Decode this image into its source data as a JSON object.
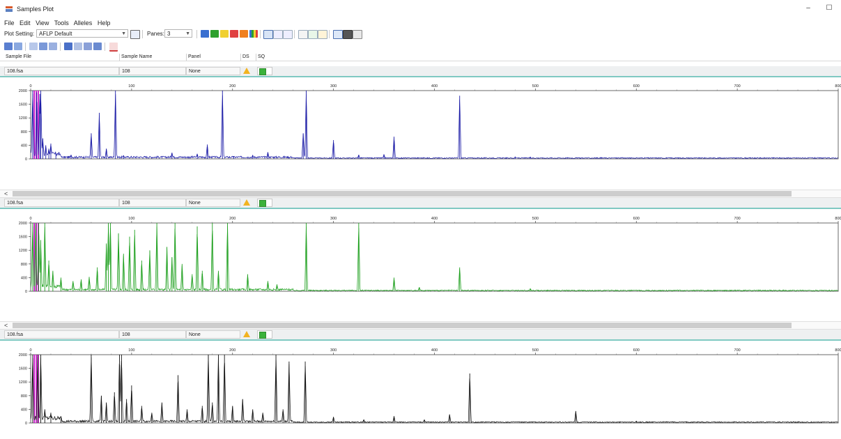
{
  "window": {
    "title": "Samples Plot",
    "minimize_glyph": "–",
    "maximize_glyph": "☐"
  },
  "menu": [
    "File",
    "Edit",
    "View",
    "Tools",
    "Alleles",
    "Help"
  ],
  "toolbar": {
    "plot_setting_label": "Plot Setting:",
    "plot_setting_value": "AFLP Default",
    "panes_label": "Panes:",
    "panes_value": "3"
  },
  "table_header": {
    "sample_file": "Sample File",
    "sample_name": "Sample Name",
    "panel": "Panel",
    "ds": "DS",
    "sq": "SQ"
  },
  "samples": [
    {
      "file": "108.fsa",
      "name": "108",
      "panel": "None"
    },
    {
      "file": "108.fsa",
      "name": "108",
      "panel": "None"
    },
    {
      "file": "108.fsa",
      "name": "108",
      "panel": "None"
    }
  ],
  "scroll_left_glyph": "<",
  "colors": {
    "blue_trace": "#1a1aa6",
    "green_trace": "#1fa01f",
    "black_trace": "#111111",
    "highlight_magenta": "#c800c8",
    "row_accent": "#7fc9c2"
  },
  "chart_data": [
    {
      "type": "line",
      "series": [
        {
          "color": "#1a1aa6",
          "peaks": [
            [
              2,
              2000
            ],
            [
              6,
              1950
            ],
            [
              9,
              1900
            ],
            [
              10,
              2000
            ],
            [
              12,
              600
            ],
            [
              15,
              400
            ],
            [
              18,
              300
            ],
            [
              20,
              450
            ],
            [
              25,
              180
            ],
            [
              40,
              120
            ],
            [
              60,
              750
            ],
            [
              68,
              1350
            ],
            [
              75,
              300
            ],
            [
              84,
              2000
            ],
            [
              92,
              100
            ],
            [
              140,
              180
            ],
            [
              165,
              150
            ],
            [
              175,
              420
            ],
            [
              190,
              2000
            ],
            [
              201,
              80
            ],
            [
              220,
              110
            ],
            [
              235,
              200
            ],
            [
              270,
              750
            ],
            [
              273,
              2000
            ],
            [
              300,
              550
            ],
            [
              325,
              120
            ],
            [
              350,
              130
            ],
            [
              360,
              650
            ],
            [
              425,
              1850
            ],
            [
              480,
              60
            ],
            [
              495,
              60
            ]
          ]
        }
      ],
      "x_ticks": [
        "0",
        "100",
        "200",
        "300",
        "400",
        "500",
        "600",
        "700",
        "800"
      ],
      "y_ticks": [
        "2000",
        "1600",
        "1200",
        "800",
        "400",
        "0"
      ],
      "xlim": [
        0,
        800
      ],
      "ylim": [
        0,
        2000
      ]
    },
    {
      "type": "line",
      "series": [
        {
          "color": "#1fa01f",
          "peaks": [
            [
              2,
              2000
            ],
            [
              5,
              2000
            ],
            [
              8,
              2000
            ],
            [
              10,
              1500
            ],
            [
              14,
              2000
            ],
            [
              18,
              900
            ],
            [
              22,
              600
            ],
            [
              30,
              400
            ],
            [
              42,
              300
            ],
            [
              50,
              350
            ],
            [
              58,
              420
            ],
            [
              66,
              700
            ],
            [
              75,
              1400
            ],
            [
              77,
              2000
            ],
            [
              79,
              2000
            ],
            [
              87,
              1700
            ],
            [
              92,
              1100
            ],
            [
              98,
              1600
            ],
            [
              103,
              1800
            ],
            [
              110,
              900
            ],
            [
              118,
              1200
            ],
            [
              125,
              2000
            ],
            [
              135,
              1300
            ],
            [
              140,
              1000
            ],
            [
              143,
              2000
            ],
            [
              150,
              800
            ],
            [
              160,
              500
            ],
            [
              165,
              1900
            ],
            [
              170,
              600
            ],
            [
              180,
              2000
            ],
            [
              186,
              600
            ],
            [
              195,
              2000
            ],
            [
              215,
              500
            ],
            [
              235,
              300
            ],
            [
              244,
              200
            ],
            [
              273,
              2000
            ],
            [
              325,
              2000
            ],
            [
              360,
              400
            ],
            [
              385,
              120
            ],
            [
              425,
              700
            ],
            [
              495,
              80
            ]
          ]
        }
      ],
      "x_ticks": [
        "0",
        "100",
        "200",
        "300",
        "400",
        "500",
        "600",
        "700",
        "800"
      ],
      "y_ticks": [
        "2000",
        "1600",
        "1200",
        "800",
        "400",
        "0"
      ],
      "xlim": [
        0,
        800
      ],
      "ylim": [
        0,
        2000
      ]
    },
    {
      "type": "line",
      "series": [
        {
          "color": "#111111",
          "peaks": [
            [
              2,
              2000
            ],
            [
              7,
              2000
            ],
            [
              10,
              2000
            ],
            [
              14,
              400
            ],
            [
              20,
              300
            ],
            [
              30,
              200
            ],
            [
              60,
              2000
            ],
            [
              70,
              800
            ],
            [
              75,
              600
            ],
            [
              83,
              900
            ],
            [
              88,
              2000
            ],
            [
              90,
              2000
            ],
            [
              95,
              700
            ],
            [
              100,
              1100
            ],
            [
              110,
              500
            ],
            [
              120,
              300
            ],
            [
              130,
              600
            ],
            [
              146,
              1400
            ],
            [
              155,
              400
            ],
            [
              170,
              500
            ],
            [
              176,
              2000
            ],
            [
              180,
              600
            ],
            [
              186,
              2000
            ],
            [
              192,
              2000
            ],
            [
              200,
              500
            ],
            [
              210,
              700
            ],
            [
              220,
              400
            ],
            [
              230,
              300
            ],
            [
              243,
              2000
            ],
            [
              250,
              400
            ],
            [
              256,
              1800
            ],
            [
              272,
              1800
            ],
            [
              300,
              180
            ],
            [
              330,
              100
            ],
            [
              360,
              200
            ],
            [
              390,
              100
            ],
            [
              415,
              250
            ],
            [
              435,
              1450
            ],
            [
              540,
              350
            ],
            [
              600,
              60
            ]
          ]
        }
      ],
      "x_ticks": [
        "0",
        "100",
        "200",
        "300",
        "400",
        "500",
        "600",
        "700",
        "800"
      ],
      "y_ticks": [
        "2000",
        "1600",
        "1200",
        "800",
        "400",
        "0"
      ],
      "xlim": [
        0,
        800
      ],
      "ylim": [
        0,
        2000
      ]
    }
  ]
}
